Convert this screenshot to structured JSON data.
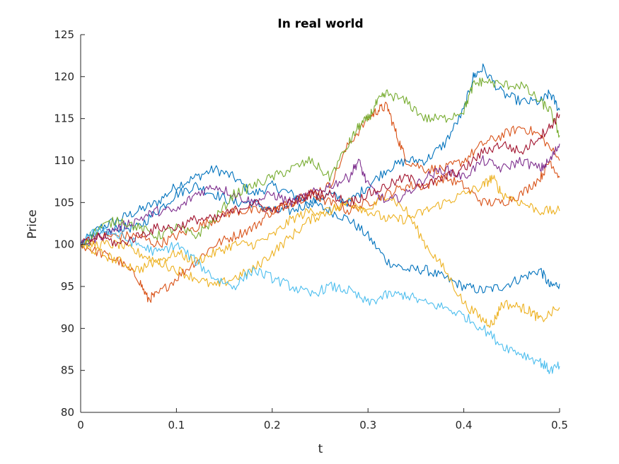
{
  "chart_data": {
    "type": "line",
    "title": "In real world",
    "xlabel": "t",
    "ylabel": "Price",
    "xlim": [
      0,
      0.5
    ],
    "ylim": [
      80,
      125
    ],
    "xticks": [
      0,
      0.1,
      0.2,
      0.3,
      0.4,
      0.5
    ],
    "xtick_labels": [
      "0",
      "0.1",
      "0.2",
      "0.3",
      "0.4",
      "0.5"
    ],
    "yticks": [
      80,
      85,
      90,
      95,
      100,
      105,
      110,
      115,
      120,
      125
    ],
    "ytick_labels": [
      "80",
      "85",
      "90",
      "95",
      "100",
      "105",
      "110",
      "115",
      "120",
      "125"
    ],
    "grid": false,
    "legend": false,
    "series": [
      {
        "color": "#0072BD",
        "points": [
          [
            0,
            100
          ],
          [
            0.02,
            102
          ],
          [
            0.04,
            103
          ],
          [
            0.06,
            104
          ],
          [
            0.08,
            105
          ],
          [
            0.1,
            107
          ],
          [
            0.12,
            108
          ],
          [
            0.14,
            109
          ],
          [
            0.16,
            108
          ],
          [
            0.18,
            106
          ],
          [
            0.2,
            107
          ],
          [
            0.22,
            106
          ],
          [
            0.24,
            105
          ],
          [
            0.26,
            104
          ],
          [
            0.28,
            103
          ],
          [
            0.3,
            101
          ],
          [
            0.32,
            98
          ],
          [
            0.34,
            97
          ],
          [
            0.36,
            97
          ],
          [
            0.38,
            96
          ],
          [
            0.4,
            95
          ],
          [
            0.42,
            94.5
          ],
          [
            0.44,
            95
          ],
          [
            0.46,
            96
          ],
          [
            0.48,
            97
          ],
          [
            0.49,
            95
          ],
          [
            0.5,
            95.3
          ]
        ]
      },
      {
        "color": "#0072BD",
        "points": [
          [
            0,
            100
          ],
          [
            0.02,
            101
          ],
          [
            0.04,
            102
          ],
          [
            0.06,
            102
          ],
          [
            0.08,
            104
          ],
          [
            0.1,
            106
          ],
          [
            0.12,
            107
          ],
          [
            0.14,
            106
          ],
          [
            0.16,
            105
          ],
          [
            0.18,
            105
          ],
          [
            0.2,
            104
          ],
          [
            0.22,
            104
          ],
          [
            0.24,
            105
          ],
          [
            0.26,
            106
          ],
          [
            0.28,
            105
          ],
          [
            0.3,
            107
          ],
          [
            0.32,
            109
          ],
          [
            0.34,
            110
          ],
          [
            0.36,
            110
          ],
          [
            0.38,
            112
          ],
          [
            0.4,
            116
          ],
          [
            0.41,
            120
          ],
          [
            0.42,
            121
          ],
          [
            0.44,
            118
          ],
          [
            0.46,
            117
          ],
          [
            0.48,
            117
          ],
          [
            0.49,
            118
          ],
          [
            0.5,
            116
          ]
        ]
      },
      {
        "color": "#D95319",
        "points": [
          [
            0,
            100
          ],
          [
            0.02,
            99
          ],
          [
            0.04,
            98
          ],
          [
            0.06,
            96
          ],
          [
            0.07,
            93.5
          ],
          [
            0.08,
            94
          ],
          [
            0.1,
            96
          ],
          [
            0.12,
            98
          ],
          [
            0.14,
            100
          ],
          [
            0.16,
            101
          ],
          [
            0.18,
            102
          ],
          [
            0.2,
            104
          ],
          [
            0.22,
            105
          ],
          [
            0.24,
            106
          ],
          [
            0.26,
            107
          ],
          [
            0.28,
            112
          ],
          [
            0.3,
            115
          ],
          [
            0.31,
            116
          ],
          [
            0.32,
            116.5
          ],
          [
            0.33,
            113
          ],
          [
            0.34,
            110
          ],
          [
            0.36,
            109
          ],
          [
            0.38,
            109
          ],
          [
            0.4,
            110
          ],
          [
            0.42,
            112
          ],
          [
            0.44,
            113
          ],
          [
            0.46,
            114
          ],
          [
            0.48,
            113
          ],
          [
            0.5,
            110
          ]
        ]
      },
      {
        "color": "#D95319",
        "points": [
          [
            0,
            100
          ],
          [
            0.02,
            101
          ],
          [
            0.04,
            101
          ],
          [
            0.06,
            101
          ],
          [
            0.08,
            100
          ],
          [
            0.1,
            101
          ],
          [
            0.12,
            102
          ],
          [
            0.14,
            103
          ],
          [
            0.16,
            104
          ],
          [
            0.18,
            104
          ],
          [
            0.2,
            104
          ],
          [
            0.22,
            105
          ],
          [
            0.24,
            106
          ],
          [
            0.26,
            105
          ],
          [
            0.28,
            104
          ],
          [
            0.3,
            105
          ],
          [
            0.32,
            106
          ],
          [
            0.34,
            107
          ],
          [
            0.36,
            107
          ],
          [
            0.38,
            108
          ],
          [
            0.4,
            107
          ],
          [
            0.42,
            105
          ],
          [
            0.44,
            105
          ],
          [
            0.46,
            106
          ],
          [
            0.48,
            108
          ],
          [
            0.49,
            110
          ],
          [
            0.5,
            108
          ]
        ]
      },
      {
        "color": "#EDB120",
        "points": [
          [
            0,
            100
          ],
          [
            0.02,
            100
          ],
          [
            0.04,
            100
          ],
          [
            0.06,
            99
          ],
          [
            0.08,
            98
          ],
          [
            0.1,
            99
          ],
          [
            0.12,
            98
          ],
          [
            0.14,
            99
          ],
          [
            0.16,
            100
          ],
          [
            0.18,
            100
          ],
          [
            0.2,
            101
          ],
          [
            0.22,
            103
          ],
          [
            0.24,
            104
          ],
          [
            0.26,
            104
          ],
          [
            0.28,
            105
          ],
          [
            0.3,
            104
          ],
          [
            0.32,
            106
          ],
          [
            0.34,
            104
          ],
          [
            0.36,
            100
          ],
          [
            0.38,
            97
          ],
          [
            0.4,
            93
          ],
          [
            0.42,
            91
          ],
          [
            0.43,
            90.5
          ],
          [
            0.44,
            93
          ],
          [
            0.46,
            92.5
          ],
          [
            0.47,
            92
          ],
          [
            0.48,
            91
          ],
          [
            0.5,
            92.5
          ]
        ]
      },
      {
        "color": "#EDB120",
        "points": [
          [
            0,
            100
          ],
          [
            0.02,
            99
          ],
          [
            0.04,
            98
          ],
          [
            0.06,
            97
          ],
          [
            0.08,
            98
          ],
          [
            0.1,
            97
          ],
          [
            0.12,
            96
          ],
          [
            0.14,
            95
          ],
          [
            0.16,
            96
          ],
          [
            0.18,
            97
          ],
          [
            0.2,
            99
          ],
          [
            0.22,
            101
          ],
          [
            0.24,
            103
          ],
          [
            0.26,
            104
          ],
          [
            0.28,
            105
          ],
          [
            0.3,
            104
          ],
          [
            0.32,
            103
          ],
          [
            0.34,
            103
          ],
          [
            0.36,
            104
          ],
          [
            0.38,
            105
          ],
          [
            0.4,
            106
          ],
          [
            0.42,
            107
          ],
          [
            0.43,
            108
          ],
          [
            0.44,
            106
          ],
          [
            0.46,
            105
          ],
          [
            0.48,
            104
          ],
          [
            0.5,
            104
          ]
        ]
      },
      {
        "color": "#7E2F8E",
        "points": [
          [
            0,
            100
          ],
          [
            0.02,
            101
          ],
          [
            0.04,
            102
          ],
          [
            0.06,
            103
          ],
          [
            0.08,
            104
          ],
          [
            0.1,
            104
          ],
          [
            0.12,
            106
          ],
          [
            0.14,
            107
          ],
          [
            0.16,
            106
          ],
          [
            0.18,
            105
          ],
          [
            0.2,
            106
          ],
          [
            0.22,
            105
          ],
          [
            0.24,
            106
          ],
          [
            0.26,
            107
          ],
          [
            0.28,
            108
          ],
          [
            0.29,
            110
          ],
          [
            0.3,
            107
          ],
          [
            0.32,
            105
          ],
          [
            0.34,
            106
          ],
          [
            0.36,
            108
          ],
          [
            0.38,
            109
          ],
          [
            0.4,
            108
          ],
          [
            0.42,
            110
          ],
          [
            0.44,
            109
          ],
          [
            0.46,
            110
          ],
          [
            0.48,
            109
          ],
          [
            0.49,
            110
          ],
          [
            0.5,
            112
          ]
        ]
      },
      {
        "color": "#77AC30",
        "points": [
          [
            0,
            100
          ],
          [
            0.02,
            102
          ],
          [
            0.04,
            103
          ],
          [
            0.06,
            102
          ],
          [
            0.08,
            101
          ],
          [
            0.1,
            102
          ],
          [
            0.12,
            101
          ],
          [
            0.14,
            103
          ],
          [
            0.16,
            106
          ],
          [
            0.18,
            107
          ],
          [
            0.2,
            108
          ],
          [
            0.22,
            109
          ],
          [
            0.24,
            110
          ],
          [
            0.26,
            108
          ],
          [
            0.28,
            112
          ],
          [
            0.29,
            114
          ],
          [
            0.3,
            115
          ],
          [
            0.31,
            117
          ],
          [
            0.32,
            118
          ],
          [
            0.34,
            117
          ],
          [
            0.36,
            115
          ],
          [
            0.38,
            115
          ],
          [
            0.4,
            116
          ],
          [
            0.41,
            119
          ],
          [
            0.42,
            119.5
          ],
          [
            0.44,
            119
          ],
          [
            0.46,
            119
          ],
          [
            0.48,
            117
          ],
          [
            0.49,
            116
          ],
          [
            0.5,
            113
          ]
        ]
      },
      {
        "color": "#4DBEEE",
        "points": [
          [
            0,
            100
          ],
          [
            0.02,
            102
          ],
          [
            0.04,
            101
          ],
          [
            0.06,
            100
          ],
          [
            0.08,
            99
          ],
          [
            0.1,
            100
          ],
          [
            0.12,
            98
          ],
          [
            0.14,
            96
          ],
          [
            0.16,
            95
          ],
          [
            0.18,
            97
          ],
          [
            0.2,
            96
          ],
          [
            0.22,
            95
          ],
          [
            0.24,
            94
          ],
          [
            0.26,
            95
          ],
          [
            0.28,
            94.5
          ],
          [
            0.3,
            93
          ],
          [
            0.32,
            94
          ],
          [
            0.34,
            94
          ],
          [
            0.36,
            93
          ],
          [
            0.38,
            92.5
          ],
          [
            0.4,
            91.5
          ],
          [
            0.42,
            90
          ],
          [
            0.44,
            88
          ],
          [
            0.46,
            87
          ],
          [
            0.48,
            86
          ],
          [
            0.49,
            85
          ],
          [
            0.5,
            85.5
          ]
        ]
      },
      {
        "color": "#A2142F",
        "points": [
          [
            0,
            100
          ],
          [
            0.02,
            101
          ],
          [
            0.04,
            100
          ],
          [
            0.06,
            101
          ],
          [
            0.08,
            102
          ],
          [
            0.1,
            102
          ],
          [
            0.12,
            103
          ],
          [
            0.14,
            103
          ],
          [
            0.16,
            104
          ],
          [
            0.18,
            105
          ],
          [
            0.2,
            104
          ],
          [
            0.22,
            105
          ],
          [
            0.24,
            106
          ],
          [
            0.26,
            106
          ],
          [
            0.28,
            105
          ],
          [
            0.3,
            106
          ],
          [
            0.32,
            107
          ],
          [
            0.34,
            108
          ],
          [
            0.36,
            107
          ],
          [
            0.38,
            108
          ],
          [
            0.4,
            109
          ],
          [
            0.42,
            111
          ],
          [
            0.44,
            112
          ],
          [
            0.46,
            111
          ],
          [
            0.48,
            113
          ],
          [
            0.49,
            114
          ],
          [
            0.5,
            115.5
          ]
        ]
      }
    ]
  }
}
